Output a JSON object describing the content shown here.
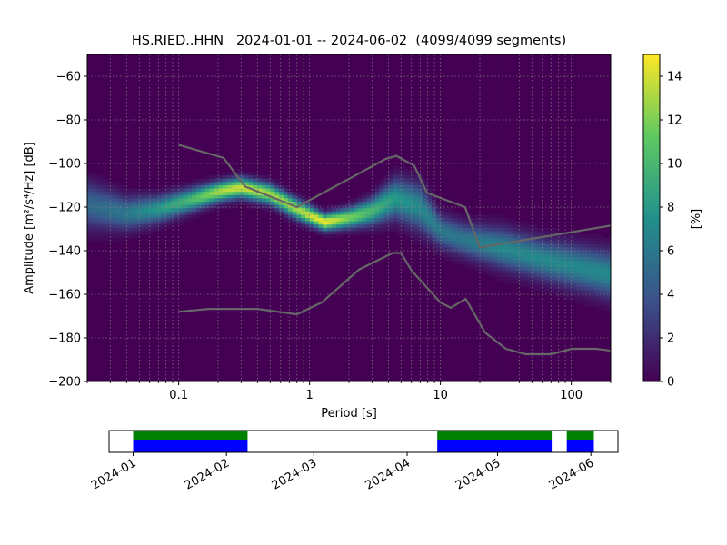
{
  "title": "HS.RIED..HHN   2024-01-01 -- 2024-06-02  (4099/4099 segments)",
  "chart_data": {
    "type": "heatmap",
    "xlabel": "Period [s]",
    "ylabel": "Amplitude [m²/s⁴/Hz] [dB]",
    "x_scale": "log",
    "xlim": [
      0.02,
      200
    ],
    "ylim": [
      -200,
      -50
    ],
    "x_ticks": [
      {
        "value": 0.1,
        "label": "0.1"
      },
      {
        "value": 1,
        "label": "1"
      },
      {
        "value": 10,
        "label": "10"
      },
      {
        "value": 100,
        "label": "100"
      }
    ],
    "y_ticks": [
      {
        "value": -60,
        "label": "−60"
      },
      {
        "value": -80,
        "label": "−80"
      },
      {
        "value": -100,
        "label": "−100"
      },
      {
        "value": -120,
        "label": "−120"
      },
      {
        "value": -140,
        "label": "−140"
      },
      {
        "value": -160,
        "label": "−160"
      },
      {
        "value": -180,
        "label": "−180"
      },
      {
        "value": -200,
        "label": "−200"
      }
    ],
    "grid": true,
    "colormap": [
      "#440154",
      "#3b528b",
      "#21918c",
      "#5ec962",
      "#fde725"
    ],
    "colorbar": {
      "label": "[%]",
      "range": [
        0,
        15
      ],
      "ticks": [
        {
          "value": 0,
          "label": "0"
        },
        {
          "value": 2,
          "label": "2"
        },
        {
          "value": 4,
          "label": "4"
        },
        {
          "value": 6,
          "label": "6"
        },
        {
          "value": 8,
          "label": "8"
        },
        {
          "value": 10,
          "label": "10"
        },
        {
          "value": 12,
          "label": "12"
        },
        {
          "value": 14,
          "label": "14"
        }
      ]
    },
    "density_ridge": [
      {
        "x": 0.02,
        "y": -119,
        "spread": 7,
        "peak": 5
      },
      {
        "x": 0.04,
        "y": -123,
        "spread": 5,
        "peak": 6
      },
      {
        "x": 0.07,
        "y": -121,
        "spread": 4,
        "peak": 8
      },
      {
        "x": 0.12,
        "y": -117,
        "spread": 3.5,
        "peak": 10
      },
      {
        "x": 0.2,
        "y": -113,
        "spread": 3,
        "peak": 13
      },
      {
        "x": 0.3,
        "y": -111,
        "spread": 3,
        "peak": 14
      },
      {
        "x": 0.5,
        "y": -114,
        "spread": 3,
        "peak": 13
      },
      {
        "x": 0.8,
        "y": -121,
        "spread": 3,
        "peak": 13
      },
      {
        "x": 1.3,
        "y": -127,
        "spread": 2.5,
        "peak": 15
      },
      {
        "x": 2,
        "y": -125,
        "spread": 3,
        "peak": 12
      },
      {
        "x": 3,
        "y": -122,
        "spread": 4,
        "peak": 10
      },
      {
        "x": 4.5,
        "y": -116,
        "spread": 6,
        "peak": 8
      },
      {
        "x": 7,
        "y": -120,
        "spread": 7,
        "peak": 7
      },
      {
        "x": 10,
        "y": -131,
        "spread": 5,
        "peak": 6
      },
      {
        "x": 15,
        "y": -135,
        "spread": 5,
        "peak": 6
      },
      {
        "x": 30,
        "y": -139,
        "spread": 6,
        "peak": 7
      },
      {
        "x": 60,
        "y": -144,
        "spread": 6,
        "peak": 7
      },
      {
        "x": 200,
        "y": -151,
        "spread": 7,
        "peak": 7
      }
    ],
    "noise_models": [
      {
        "name": "NHNM",
        "color": "#666666",
        "points": [
          [
            0.1,
            -91.5
          ],
          [
            0.22,
            -97.4
          ],
          [
            0.32,
            -110.5
          ],
          [
            0.8,
            -120
          ],
          [
            3.8,
            -98
          ],
          [
            4.6,
            -96.5
          ],
          [
            6.3,
            -101
          ],
          [
            7.9,
            -113.5
          ],
          [
            15.4,
            -120
          ],
          [
            20,
            -138.5
          ],
          [
            354.8,
            -126
          ]
        ]
      },
      {
        "name": "NLNM",
        "color": "#666666",
        "points": [
          [
            0.1,
            -168
          ],
          [
            0.17,
            -166.7
          ],
          [
            0.4,
            -166.7
          ],
          [
            0.8,
            -169.2
          ],
          [
            1.24,
            -163.7
          ],
          [
            2.4,
            -148.6
          ],
          [
            4.3,
            -141.1
          ],
          [
            5,
            -141.1
          ],
          [
            6,
            -149
          ],
          [
            10,
            -163.8
          ],
          [
            12,
            -166.2
          ],
          [
            15.6,
            -162.1
          ],
          [
            21.9,
            -177.5
          ],
          [
            31.6,
            -185
          ],
          [
            45,
            -187.5
          ],
          [
            70,
            -187.5
          ],
          [
            101,
            -185
          ],
          [
            154,
            -185
          ],
          [
            328,
            -187.5
          ]
        ]
      }
    ],
    "coverage": {
      "timeline_ticks": [
        {
          "value": "2024-01-01",
          "label": "2024-01"
        },
        {
          "value": "2024-02-01",
          "label": "2024-02"
        },
        {
          "value": "2024-03-01",
          "label": "2024-03"
        },
        {
          "value": "2024-04-01",
          "label": "2024-04"
        },
        {
          "value": "2024-05-01",
          "label": "2024-05"
        },
        {
          "value": "2024-06-01",
          "label": "2024-06"
        }
      ],
      "range": [
        "2023-12-24",
        "2024-06-10"
      ],
      "segments": [
        {
          "start": "2024-01-01",
          "end": "2024-02-08"
        },
        {
          "start": "2024-04-11",
          "end": "2024-05-19"
        },
        {
          "start": "2024-05-24",
          "end": "2024-06-02"
        }
      ],
      "data_color": "#0000ff",
      "gap_free_color": "#008000"
    }
  }
}
